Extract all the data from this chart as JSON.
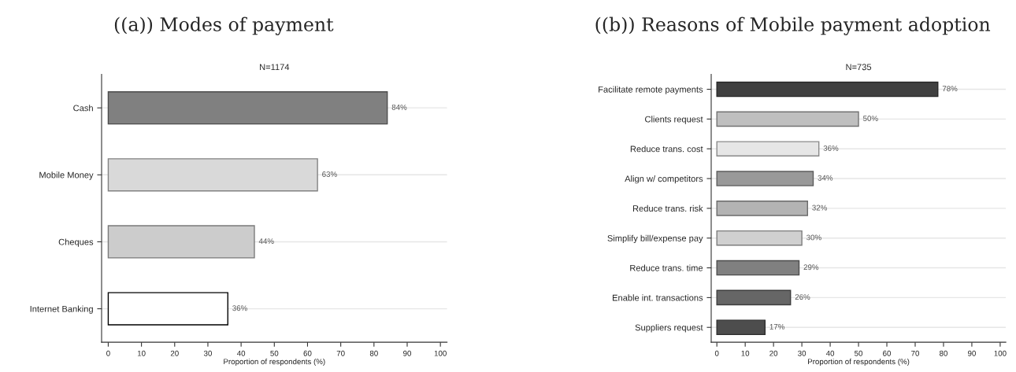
{
  "chart_data": [
    {
      "type": "bar",
      "orientation": "horizontal",
      "title": "((a)) Modes of payment",
      "subtitle": "N=1174",
      "xlabel": "Proportion of respondents (%)",
      "categories": [
        "Cash",
        "Mobile Money",
        "Cheques",
        "Internet Banking"
      ],
      "values": [
        84,
        63,
        44,
        36
      ],
      "colors": [
        "#808080",
        "#d9d9d9",
        "#cccccc",
        "#ffffff"
      ],
      "value_labels": [
        "84%",
        "63%",
        "44%",
        "36%"
      ],
      "xlim": [
        -2,
        102
      ],
      "xticks": [
        0,
        10,
        20,
        30,
        40,
        50,
        60,
        70,
        80,
        90,
        100
      ],
      "grid": "y"
    },
    {
      "type": "bar",
      "orientation": "horizontal",
      "title": "((b)) Reasons of Mobile payment adoption",
      "subtitle": "N=735",
      "xlabel": "Proportion of respondents (%)",
      "categories": [
        "Facilitate remote payments",
        "Clients request",
        "Reduce trans. cost",
        "Align w/ competitors",
        "Reduce trans. risk",
        "Simplify bill/expense pay",
        "Reduce trans. time",
        "Enable int. transactions",
        "Suppliers request"
      ],
      "values": [
        78,
        50,
        36,
        34,
        32,
        30,
        29,
        26,
        17
      ],
      "colors": [
        "#404040",
        "#bfbfbf",
        "#e6e6e6",
        "#999999",
        "#b3b3b3",
        "#d0d0d0",
        "#808080",
        "#666666",
        "#4d4d4d"
      ],
      "value_labels": [
        "78%",
        "50%",
        "36%",
        "34%",
        "32%",
        "30%",
        "29%",
        "26%",
        "17%"
      ],
      "xlim": [
        -2,
        102
      ],
      "xticks": [
        0,
        10,
        20,
        30,
        40,
        50,
        60,
        70,
        80,
        90,
        100
      ],
      "grid": "y"
    }
  ]
}
